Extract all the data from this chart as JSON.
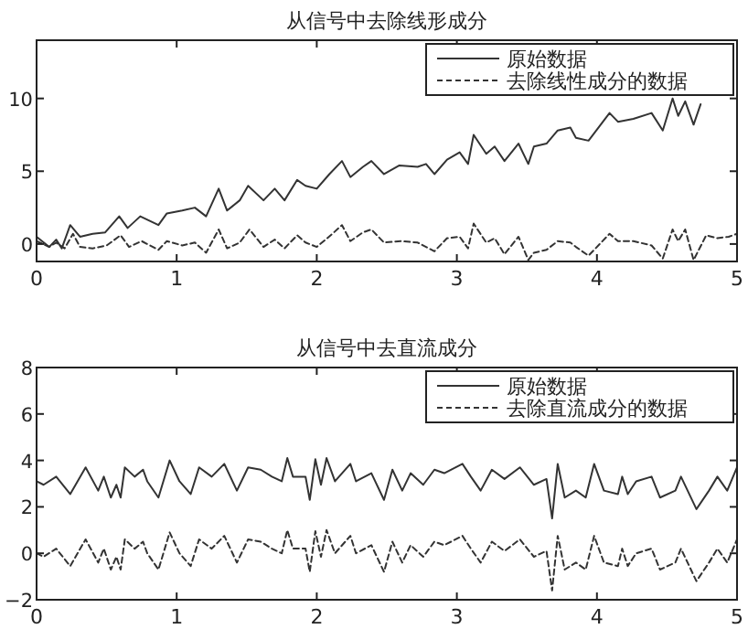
{
  "chart_data": [
    {
      "type": "line",
      "title": "从信号中去除线形成分",
      "xlim": [
        0,
        5
      ],
      "xticks": [
        0,
        1,
        2,
        3,
        4,
        5
      ],
      "ylim": [
        -1.2,
        14
      ],
      "yticks": [
        0,
        5,
        10
      ],
      "grid": false,
      "legend": "top right",
      "series": [
        {
          "name": "原始数据",
          "color": "#333333",
          "line_style": "solid",
          "x": [
            0,
            0.09,
            0.14,
            0.18,
            0.24,
            0.31,
            0.4,
            0.49,
            0.59,
            0.65,
            0.74,
            0.87,
            0.93,
            1.04,
            1.13,
            1.21,
            1.3,
            1.36,
            1.45,
            1.51,
            1.62,
            1.7,
            1.77,
            1.86,
            1.92,
            2.0,
            2.09,
            2.18,
            2.24,
            2.33,
            2.39,
            2.48,
            2.59,
            2.72,
            2.78,
            2.84,
            2.93,
            3.02,
            3.08,
            3.12,
            3.21,
            3.27,
            3.34,
            3.44,
            3.51,
            3.55,
            3.64,
            3.72,
            3.81,
            3.85,
            3.94,
            4.09,
            4.15,
            4.26,
            4.39,
            4.47,
            4.54,
            4.58,
            4.63,
            4.69,
            4.74
          ],
          "values": [
            0.5,
            -0.2,
            0.3,
            -0.3,
            1.3,
            0.5,
            0.7,
            0.8,
            1.9,
            1.1,
            1.9,
            1.3,
            2.1,
            2.3,
            2.5,
            1.9,
            3.8,
            2.3,
            3.0,
            4.0,
            3.0,
            3.8,
            3.0,
            4.4,
            4.0,
            3.8,
            4.8,
            5.7,
            4.6,
            5.3,
            5.7,
            4.8,
            5.4,
            5.3,
            5.5,
            4.8,
            5.8,
            6.3,
            5.5,
            7.5,
            6.2,
            6.7,
            5.7,
            6.9,
            5.5,
            6.7,
            6.9,
            7.8,
            8.0,
            7.3,
            7.1,
            9.0,
            8.4,
            8.6,
            9.0,
            7.8,
            10.0,
            8.8,
            9.8,
            8.2,
            9.6
          ]
        },
        {
          "name": "去除线性成分的数据",
          "color": "#333333",
          "line_style": "dashed",
          "x": [
            0,
            0.09,
            0.14,
            0.2,
            0.26,
            0.31,
            0.4,
            0.5,
            0.6,
            0.66,
            0.75,
            0.87,
            0.93,
            1.04,
            1.13,
            1.21,
            1.3,
            1.36,
            1.45,
            1.52,
            1.62,
            1.7,
            1.77,
            1.86,
            1.92,
            2.0,
            2.1,
            2.18,
            2.24,
            2.33,
            2.39,
            2.48,
            2.6,
            2.72,
            2.84,
            2.93,
            3.02,
            3.08,
            3.12,
            3.21,
            3.27,
            3.34,
            3.44,
            3.51,
            3.55,
            3.64,
            3.72,
            3.81,
            3.85,
            3.94,
            4.09,
            4.15,
            4.26,
            4.39,
            4.47,
            4.54,
            4.58,
            4.63,
            4.69,
            4.78,
            4.86,
            4.94,
            5.0
          ],
          "values": [
            0.2,
            -0.2,
            0.1,
            -0.3,
            0.7,
            -0.2,
            -0.3,
            -0.1,
            0.6,
            -0.2,
            0.2,
            -0.4,
            0.2,
            -0.1,
            0.1,
            -0.6,
            1.0,
            -0.3,
            0.1,
            1.0,
            -0.2,
            0.3,
            -0.3,
            0.6,
            0.1,
            -0.2,
            0.6,
            1.3,
            0.2,
            0.8,
            1.0,
            0.1,
            0.2,
            0.1,
            -0.5,
            0.4,
            0.5,
            -0.3,
            1.4,
            0.1,
            0.4,
            -0.7,
            0.5,
            -1.1,
            -0.6,
            -0.4,
            0.2,
            0.1,
            -0.2,
            -0.8,
            0.7,
            0.2,
            0.2,
            -0.1,
            -1.0,
            1.0,
            0.2,
            1.0,
            -1.1,
            0.6,
            0.4,
            0.5,
            0.7
          ]
        }
      ]
    },
    {
      "type": "line",
      "title": "从信号中去直流成分",
      "xlim": [
        0,
        5
      ],
      "xticks": [
        0,
        1,
        2,
        3,
        4,
        5
      ],
      "ylim": [
        -2,
        8
      ],
      "yticks": [
        -2,
        0,
        2,
        4,
        6,
        8
      ],
      "grid": false,
      "legend": "top right",
      "series": [
        {
          "name": "原始数据",
          "color": "#333333",
          "line_style": "solid",
          "x": [
            0,
            0.05,
            0.14,
            0.24,
            0.35,
            0.44,
            0.48,
            0.53,
            0.57,
            0.6,
            0.63,
            0.7,
            0.76,
            0.79,
            0.87,
            0.95,
            1.02,
            1.1,
            1.16,
            1.25,
            1.34,
            1.43,
            1.51,
            1.6,
            1.68,
            1.75,
            1.79,
            1.83,
            1.92,
            1.95,
            1.99,
            2.03,
            2.07,
            2.13,
            2.24,
            2.28,
            2.39,
            2.48,
            2.54,
            2.61,
            2.67,
            2.76,
            2.84,
            2.91,
            3.04,
            3.1,
            3.17,
            3.25,
            3.34,
            3.45,
            3.55,
            3.64,
            3.68,
            3.72,
            3.77,
            3.85,
            3.92,
            3.98,
            4.05,
            4.15,
            4.18,
            4.22,
            4.28,
            4.39,
            4.45,
            4.56,
            4.6,
            4.71,
            4.8,
            4.86,
            4.93,
            5.0
          ],
          "values": [
            3.1,
            2.95,
            3.3,
            2.55,
            3.7,
            2.7,
            3.3,
            2.4,
            2.95,
            2.4,
            3.7,
            3.3,
            3.6,
            3.1,
            2.4,
            4.0,
            3.1,
            2.55,
            3.7,
            3.3,
            3.85,
            2.7,
            3.7,
            3.6,
            3.3,
            3.1,
            4.1,
            3.3,
            3.3,
            2.3,
            4.05,
            2.95,
            4.1,
            3.1,
            3.85,
            3.1,
            3.45,
            2.3,
            3.6,
            2.7,
            3.45,
            2.95,
            3.6,
            3.45,
            3.85,
            3.3,
            2.7,
            3.6,
            3.2,
            3.7,
            2.95,
            3.2,
            1.5,
            3.85,
            2.4,
            2.7,
            2.4,
            3.85,
            2.7,
            2.55,
            3.3,
            2.55,
            3.1,
            3.3,
            2.4,
            2.7,
            3.3,
            1.9,
            2.7,
            3.3,
            2.7,
            3.7
          ]
        },
        {
          "name": "去除直流成分的数据",
          "color": "#333333",
          "line_style": "dashed",
          "x": [
            0,
            0.05,
            0.14,
            0.24,
            0.35,
            0.44,
            0.48,
            0.53,
            0.57,
            0.6,
            0.63,
            0.7,
            0.76,
            0.79,
            0.87,
            0.95,
            1.02,
            1.1,
            1.16,
            1.25,
            1.34,
            1.43,
            1.51,
            1.6,
            1.68,
            1.75,
            1.79,
            1.83,
            1.92,
            1.95,
            1.99,
            2.03,
            2.07,
            2.13,
            2.24,
            2.28,
            2.39,
            2.48,
            2.54,
            2.61,
            2.67,
            2.76,
            2.84,
            2.91,
            3.04,
            3.1,
            3.17,
            3.25,
            3.34,
            3.45,
            3.55,
            3.64,
            3.68,
            3.72,
            3.77,
            3.85,
            3.92,
            3.98,
            4.05,
            4.15,
            4.18,
            4.22,
            4.28,
            4.39,
            4.45,
            4.56,
            4.6,
            4.71,
            4.8,
            4.86,
            4.93,
            5.0
          ],
          "values": [
            0.0,
            -0.15,
            0.2,
            -0.55,
            0.6,
            -0.4,
            0.2,
            -0.7,
            -0.15,
            -0.7,
            0.6,
            0.2,
            0.5,
            0.0,
            -0.7,
            0.9,
            0.0,
            -0.55,
            0.6,
            0.2,
            0.75,
            -0.4,
            0.6,
            0.5,
            0.2,
            0.0,
            1.0,
            0.2,
            0.2,
            -0.8,
            0.95,
            -0.15,
            1.0,
            0.0,
            0.75,
            0.0,
            0.35,
            -0.8,
            0.5,
            -0.4,
            0.35,
            -0.15,
            0.5,
            0.35,
            0.75,
            0.2,
            -0.4,
            0.5,
            0.1,
            0.6,
            -0.15,
            0.1,
            -1.6,
            0.75,
            -0.7,
            -0.4,
            -0.7,
            0.75,
            -0.4,
            -0.55,
            0.2,
            -0.55,
            0.0,
            0.2,
            -0.7,
            -0.4,
            0.2,
            -1.2,
            -0.4,
            0.2,
            -0.4,
            0.6
          ]
        }
      ]
    }
  ]
}
